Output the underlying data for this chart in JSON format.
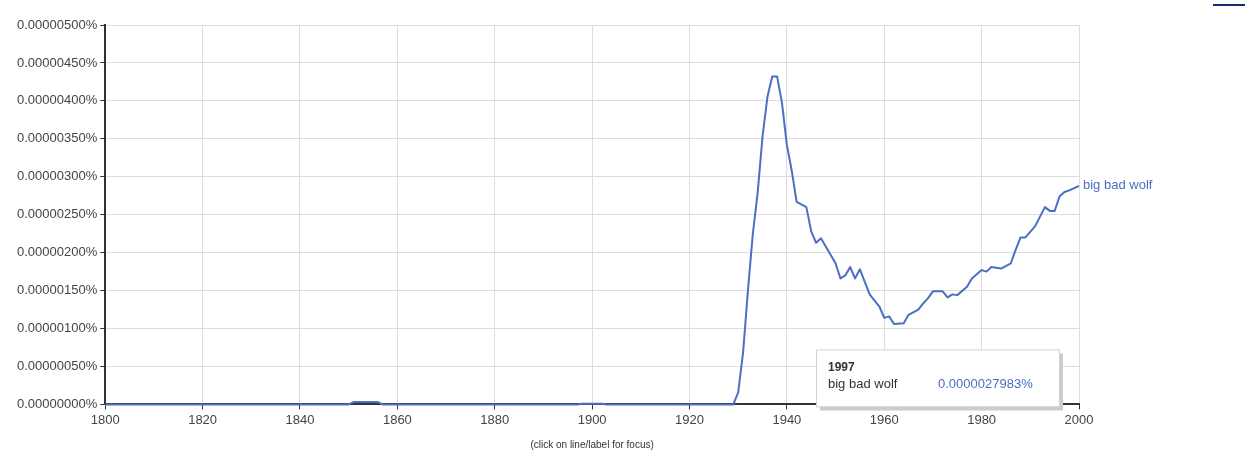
{
  "chart_data": {
    "type": "line",
    "series": [
      {
        "name": "big bad wolf",
        "color": "#4a6fc4",
        "x": [
          1800,
          1850,
          1851,
          1856,
          1857,
          1897,
          1898,
          1902,
          1903,
          1929,
          1930,
          1931,
          1932,
          1933,
          1934,
          1935,
          1936,
          1937,
          1938,
          1939,
          1940,
          1941,
          1942,
          1944,
          1945,
          1946,
          1947,
          1950,
          1951,
          1952,
          1953,
          1954,
          1955,
          1957,
          1959,
          1960,
          1961,
          1962,
          1964,
          1965,
          1967,
          1968,
          1969,
          1970,
          1972,
          1973,
          1974,
          1975,
          1977,
          1978,
          1980,
          1981,
          1982,
          1984,
          1986,
          1987,
          1988,
          1989,
          1991,
          1993,
          1994,
          1995,
          1996,
          1997,
          1998,
          2000
        ],
        "values": [
          0,
          0,
          3e-08,
          3e-08,
          0,
          0,
          1e-08,
          1e-08,
          0,
          0,
          1.6e-07,
          6.8e-07,
          1.5e-06,
          2.24e-06,
          2.79e-06,
          3.53e-06,
          4.05e-06,
          4.32e-06,
          4.32e-06,
          3.97e-06,
          3.42e-06,
          3.08e-06,
          2.67e-06,
          2.6e-06,
          2.28e-06,
          2.13e-06,
          2.19e-06,
          1.86e-06,
          1.66e-06,
          1.7e-06,
          1.81e-06,
          1.66e-06,
          1.78e-06,
          1.45e-06,
          1.29e-06,
          1.14e-06,
          1.16e-06,
          1.06e-06,
          1.07e-06,
          1.18e-06,
          1.25e-06,
          1.33e-06,
          1.4e-06,
          1.49e-06,
          1.49e-06,
          1.41e-06,
          1.45e-06,
          1.44e-06,
          1.55e-06,
          1.66e-06,
          1.77e-06,
          1.75e-06,
          1.81e-06,
          1.79e-06,
          1.86e-06,
          2.04e-06,
          2.2e-06,
          2.2e-06,
          2.35e-06,
          2.6e-06,
          2.55e-06,
          2.55e-06,
          2.74e-06,
          2.7983e-06,
          2.82e-06,
          2.88e-06
        ]
      }
    ],
    "xlim": [
      1800,
      2000
    ],
    "xticks": [
      1800,
      1820,
      1840,
      1860,
      1880,
      1900,
      1920,
      1940,
      1960,
      1980,
      2000
    ],
    "ylim": [
      0,
      5e-06
    ],
    "yticks": [
      {
        "value": 0,
        "label": "0.00000000%"
      },
      {
        "value": 5e-07,
        "label": "0.00000050%"
      },
      {
        "value": 1e-06,
        "label": "0.00000100%"
      },
      {
        "value": 1.5e-06,
        "label": "0.00000150%"
      },
      {
        "value": 2e-06,
        "label": "0.00000200%"
      },
      {
        "value": 2.5e-06,
        "label": "0.00000250%"
      },
      {
        "value": 3e-06,
        "label": "0.00000300%"
      },
      {
        "value": 3.5e-06,
        "label": "0.00000350%"
      },
      {
        "value": 4e-06,
        "label": "0.00000400%"
      },
      {
        "value": 4.5e-06,
        "label": "0.00000450%"
      },
      {
        "value": 5e-06,
        "label": "0.00000500%"
      }
    ],
    "grid": true,
    "legend": false,
    "annotations": [
      "1997",
      "big bad wolf",
      "0.0000027983%",
      "(click on line/label for focus)"
    ]
  }
}
